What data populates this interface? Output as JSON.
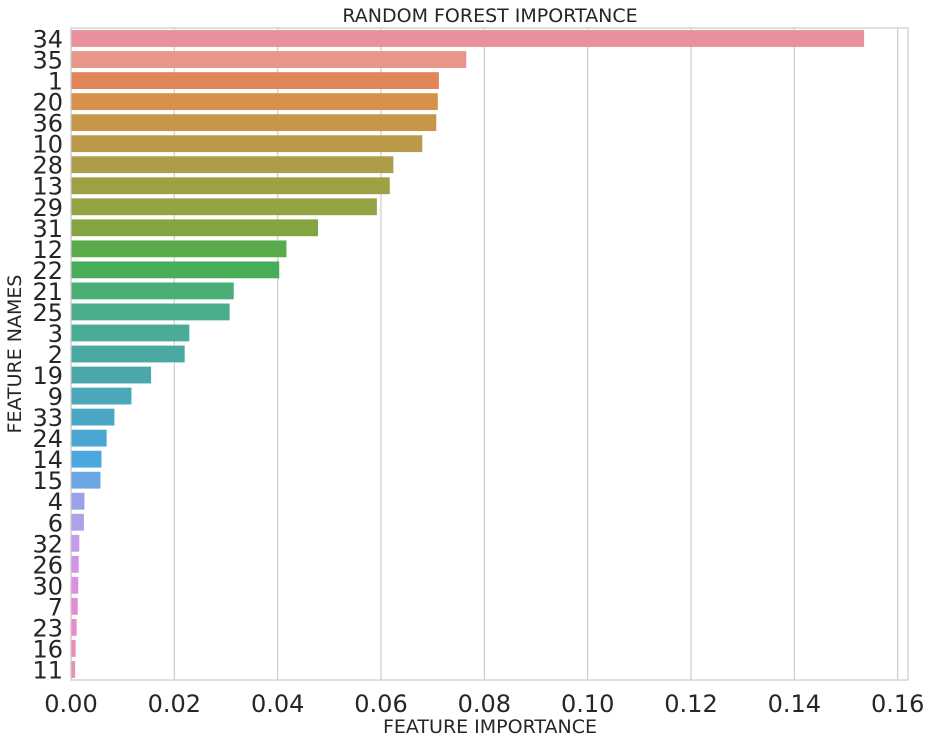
{
  "chart_data": {
    "type": "bar",
    "orientation": "horizontal",
    "title": "RANDOM FOREST IMPORTANCE",
    "xlabel": "FEATURE IMPORTANCE",
    "ylabel": "FEATURE NAMES",
    "xlim": [
      0,
      0.162
    ],
    "xticks": [
      0.0,
      0.02,
      0.04,
      0.06,
      0.08,
      0.1,
      0.12,
      0.14,
      0.16
    ],
    "xtick_labels": [
      "0.00",
      "0.02",
      "0.04",
      "0.06",
      "0.08",
      "0.10",
      "0.12",
      "0.14",
      "0.16"
    ],
    "grid": true,
    "categories": [
      "34",
      "35",
      "1",
      "20",
      "36",
      "10",
      "28",
      "13",
      "29",
      "31",
      "12",
      "22",
      "21",
      "25",
      "3",
      "2",
      "19",
      "9",
      "33",
      "24",
      "14",
      "15",
      "4",
      "6",
      "32",
      "26",
      "30",
      "7",
      "23",
      "16",
      "11"
    ],
    "values": [
      0.1535,
      0.0765,
      0.0712,
      0.071,
      0.0707,
      0.068,
      0.0624,
      0.0617,
      0.0592,
      0.0478,
      0.0417,
      0.0403,
      0.0315,
      0.0307,
      0.0229,
      0.022,
      0.0155,
      0.0117,
      0.0084,
      0.0069,
      0.0059,
      0.0057,
      0.0026,
      0.0025,
      0.0016,
      0.0015,
      0.0014,
      0.0013,
      0.0011,
      0.0009,
      0.0008
    ],
    "colors": [
      "#e8919a",
      "#e7968a",
      "#e1865b",
      "#d6914b",
      "#c6974a",
      "#ba9a4a",
      "#ad9d48",
      "#a19f44",
      "#93a243",
      "#84a43f",
      "#59ab4a",
      "#48ad59",
      "#4aad76",
      "#4aac88",
      "#4aab97",
      "#4aaaa3",
      "#4aa8ad",
      "#4aa7b8",
      "#4aa6c4",
      "#4aa7d1",
      "#4aa8df",
      "#6aa6e4",
      "#9aa3e8",
      "#aea1ea",
      "#c29be9",
      "#d195e7",
      "#e08de4",
      "#e68ad8",
      "#e88bc8",
      "#e88eb8",
      "#e992a8"
    ]
  }
}
